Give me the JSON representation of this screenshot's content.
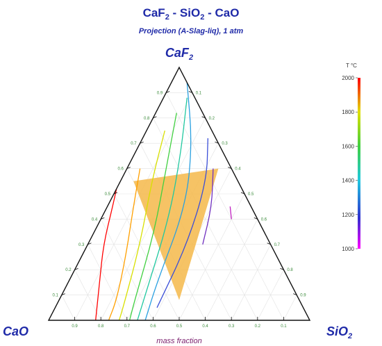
{
  "title": {
    "base1": "CaF",
    "sub1": "2",
    "mid": " - SiO",
    "sub2": "2",
    "tail": " - CaO"
  },
  "subtitle": "Projection (A-Slag-liq), 1 atm",
  "vertices": {
    "top": {
      "base": "CaF",
      "sub": "2"
    },
    "left": {
      "base": "CaO",
      "sub": ""
    },
    "right": {
      "base": "SiO",
      "sub": "2"
    }
  },
  "xlabel": "mass fraction",
  "colorbar": {
    "label": "T °C",
    "ticks": [
      "2000",
      "1800",
      "1600",
      "1400",
      "1200",
      "1000"
    ],
    "min": 1000,
    "max": 2000
  },
  "chart_data": {
    "type": "ternary",
    "axes": [
      "CaF2",
      "CaO",
      "SiO2"
    ],
    "tick_values": [
      0.1,
      0.2,
      0.3,
      0.4,
      0.5,
      0.6,
      0.7,
      0.8,
      0.9
    ],
    "tick_labels": {
      "left_edge": [
        "0.9",
        "0.8",
        "0.7",
        "0.6",
        "0.5",
        "0.4",
        "0.3",
        "0.2",
        "0.1"
      ],
      "right_edge": [
        "0.1",
        "0.2",
        "0.3",
        "0.4",
        "0.5",
        "0.6",
        "0.7",
        "0.8",
        "0.9"
      ],
      "bottom_edge": [
        "0.9",
        "0.8",
        "0.7",
        "0.6",
        "0.5",
        "0.4",
        "0.3",
        "0.2",
        "0.1"
      ]
    },
    "shaded_region": {
      "color": "#f5b94a",
      "vertices": [
        {
          "CaF2": 0.55,
          "SiO2": 0.05,
          "CaO": 0.4
        },
        {
          "CaF2": 0.6,
          "SiO2": 0.35,
          "CaO": 0.05
        },
        {
          "CaF2": 0.08,
          "SiO2": 0.46,
          "CaO": 0.46
        }
      ]
    },
    "isotherms": [
      {
        "T": 2000,
        "color": "#ff0000",
        "points": [
          {
            "CaF2": 0.52,
            "SiO2": 0.0,
            "CaO": 0.48
          },
          {
            "CaF2": 0.45,
            "SiO2": 0.02,
            "CaO": 0.53
          },
          {
            "CaF2": 0.3,
            "SiO2": 0.06,
            "CaO": 0.64
          },
          {
            "CaF2": 0.15,
            "SiO2": 0.12,
            "CaO": 0.73
          },
          {
            "CaF2": 0.0,
            "SiO2": 0.18,
            "CaO": 0.82
          }
        ]
      },
      {
        "T": 1800,
        "color": "#ffa000",
        "points": [
          {
            "CaF2": 0.6,
            "SiO2": 0.05,
            "CaO": 0.35
          },
          {
            "CaF2": 0.45,
            "SiO2": 0.1,
            "CaO": 0.45
          },
          {
            "CaF2": 0.25,
            "SiO2": 0.17,
            "CaO": 0.58
          },
          {
            "CaF2": 0.08,
            "SiO2": 0.22,
            "CaO": 0.7
          },
          {
            "CaF2": 0.0,
            "SiO2": 0.23,
            "CaO": 0.77
          }
        ]
      },
      {
        "T": 1700,
        "color": "#d8e000",
        "points": [
          {
            "CaF2": 0.75,
            "SiO2": 0.07,
            "CaO": 0.18
          },
          {
            "CaF2": 0.55,
            "SiO2": 0.12,
            "CaO": 0.33
          },
          {
            "CaF2": 0.3,
            "SiO2": 0.2,
            "CaO": 0.5
          },
          {
            "CaF2": 0.05,
            "SiO2": 0.26,
            "CaO": 0.69
          },
          {
            "CaF2": 0.0,
            "SiO2": 0.27,
            "CaO": 0.73
          }
        ]
      },
      {
        "T": 1600,
        "color": "#40d040",
        "points": [
          {
            "CaF2": 0.82,
            "SiO2": 0.08,
            "CaO": 0.1
          },
          {
            "CaF2": 0.6,
            "SiO2": 0.15,
            "CaO": 0.25
          },
          {
            "CaF2": 0.35,
            "SiO2": 0.23,
            "CaO": 0.42
          },
          {
            "CaF2": 0.08,
            "SiO2": 0.29,
            "CaO": 0.63
          },
          {
            "CaF2": 0.0,
            "SiO2": 0.31,
            "CaO": 0.69
          }
        ]
      },
      {
        "T": 1500,
        "color": "#20c8a0",
        "points": [
          {
            "CaF2": 0.88,
            "SiO2": 0.09,
            "CaO": 0.03
          },
          {
            "CaF2": 0.65,
            "SiO2": 0.18,
            "CaO": 0.17
          },
          {
            "CaF2": 0.4,
            "SiO2": 0.26,
            "CaO": 0.34
          },
          {
            "CaF2": 0.1,
            "SiO2": 0.32,
            "CaO": 0.58
          },
          {
            "CaF2": 0.0,
            "SiO2": 0.34,
            "CaO": 0.66
          }
        ]
      },
      {
        "T": 1400,
        "color": "#2aa0e0",
        "points": [
          {
            "CaF2": 0.94,
            "SiO2": 0.06,
            "CaO": 0.0
          },
          {
            "CaF2": 0.7,
            "SiO2": 0.2,
            "CaO": 0.1
          },
          {
            "CaF2": 0.45,
            "SiO2": 0.3,
            "CaO": 0.25
          },
          {
            "CaF2": 0.15,
            "SiO2": 0.34,
            "CaO": 0.51
          },
          {
            "CaF2": 0.0,
            "SiO2": 0.37,
            "CaO": 0.63
          }
        ]
      },
      {
        "T": 1300,
        "color": "#3b4fd8",
        "points": [
          {
            "CaF2": 0.72,
            "SiO2": 0.25,
            "CaO": 0.03
          },
          {
            "CaF2": 0.55,
            "SiO2": 0.33,
            "CaO": 0.12
          },
          {
            "CaF2": 0.3,
            "SiO2": 0.38,
            "CaO": 0.32
          },
          {
            "CaF2": 0.05,
            "SiO2": 0.39,
            "CaO": 0.56
          }
        ]
      },
      {
        "T": 1200,
        "color": "#7030c0",
        "points": [
          {
            "CaF2": 0.6,
            "SiO2": 0.33,
            "CaO": 0.07
          },
          {
            "CaF2": 0.45,
            "SiO2": 0.4,
            "CaO": 0.15
          },
          {
            "CaF2": 0.3,
            "SiO2": 0.44,
            "CaO": 0.26
          }
        ]
      },
      {
        "T": 1100,
        "color": "#c020c0",
        "points": [
          {
            "CaF2": 0.45,
            "SiO2": 0.47,
            "CaO": 0.08
          },
          {
            "CaF2": 0.4,
            "SiO2": 0.5,
            "CaO": 0.1
          }
        ]
      }
    ]
  }
}
